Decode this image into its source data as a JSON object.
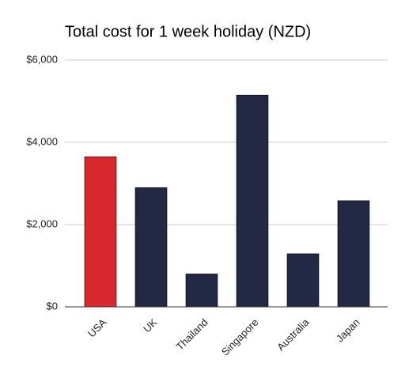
{
  "chart_data": {
    "type": "bar",
    "title": "Total cost for 1 week holiday (NZD)",
    "categories": [
      "USA",
      "UK",
      "Thailand",
      "Singapore",
      "Australia",
      "Japan"
    ],
    "values": [
      3650,
      2900,
      800,
      5150,
      1290,
      2580
    ],
    "colors": [
      "#d9272e",
      "#232845",
      "#232845",
      "#232845",
      "#232845",
      "#232845"
    ],
    "ylim": [
      0,
      6000
    ],
    "yticks": [
      {
        "value": 0,
        "label": "$0"
      },
      {
        "value": 2000,
        "label": "$2,000"
      },
      {
        "value": 4000,
        "label": "$4,000"
      },
      {
        "value": 6000,
        "label": "$6,000"
      }
    ],
    "grid": true
  }
}
